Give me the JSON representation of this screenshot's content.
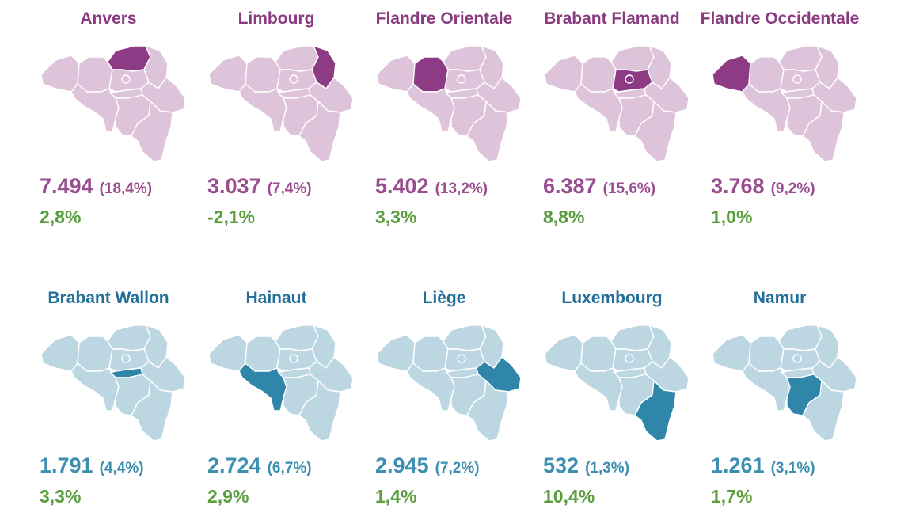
{
  "colors": {
    "flanders_title": "#8a3a80",
    "flanders_value": "#9a4d8e",
    "flanders_highlight": "#8e3b86",
    "flanders_base": "#ddc4da",
    "wallonia_title": "#22709a",
    "wallonia_value": "#3c8fb0",
    "wallonia_highlight": "#2f86a8",
    "wallonia_base": "#bdd7e2",
    "growth": "#5a9e3f"
  },
  "provinces": [
    {
      "name": "Anvers",
      "value": "7.494",
      "share": "(18,4%)",
      "growth": "2,8%",
      "region": "flanders",
      "highlight": "antwerp"
    },
    {
      "name": "Limbourg",
      "value": "3.037",
      "share": "(7,4%)",
      "growth": "-2,1%",
      "region": "flanders",
      "highlight": "limburg"
    },
    {
      "name": "Flandre Orientale",
      "value": "5.402",
      "share": "(13,2%)",
      "growth": "3,3%",
      "region": "flanders",
      "highlight": "east-flanders"
    },
    {
      "name": "Brabant Flamand",
      "value": "6.387",
      "share": "(15,6%)",
      "growth": "8,8%",
      "region": "flanders",
      "highlight": "flemish-brabant"
    },
    {
      "name": "Flandre Occidentale",
      "value": "3.768",
      "share": "(9,2%)",
      "growth": "1,0%",
      "region": "flanders",
      "highlight": "west-flanders"
    },
    {
      "name": "Brabant Wallon",
      "value": "1.791",
      "share": "(4,4%)",
      "growth": "3,3%",
      "region": "wallonia",
      "highlight": "walloon-brabant"
    },
    {
      "name": "Hainaut",
      "value": "2.724",
      "share": "(6,7%)",
      "growth": "2,9%",
      "region": "wallonia",
      "highlight": "hainaut"
    },
    {
      "name": "Liège",
      "value": "2.945",
      "share": "(7,2%)",
      "growth": "1,4%",
      "region": "wallonia",
      "highlight": "liege"
    },
    {
      "name": "Luxembourg",
      "value": "532",
      "share": "(1,3%)",
      "growth": "10,4%",
      "region": "wallonia",
      "highlight": "luxembourg"
    },
    {
      "name": "Namur",
      "value": "1.261",
      "share": "(3,1%)",
      "growth": "1,7%",
      "region": "wallonia",
      "highlight": "namur"
    }
  ]
}
